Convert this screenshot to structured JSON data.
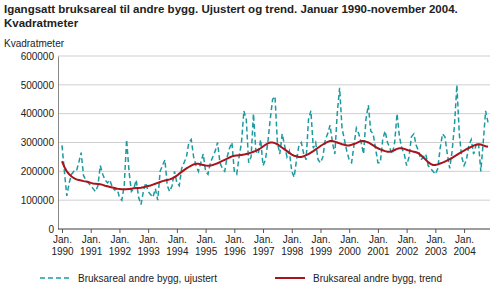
{
  "chart_data": {
    "type": "line",
    "title": "Igangsatt bruksareal til andre bygg. Ujustert og trend. Januar 1990-november 2004. Kvadratmeter",
    "y_label": "Kvadratmeter",
    "categories": [
      "Jan. 1990",
      null,
      null,
      null,
      null,
      null,
      null,
      null,
      null,
      null,
      null,
      null,
      "Jan. 1991",
      null,
      null,
      null,
      null,
      null,
      null,
      null,
      null,
      null,
      null,
      null,
      "Jan. 1992",
      null,
      null,
      null,
      null,
      null,
      null,
      null,
      null,
      null,
      null,
      null,
      "Jan. 1993",
      null,
      null,
      null,
      null,
      null,
      null,
      null,
      null,
      null,
      null,
      null,
      "Jan. 1994",
      null,
      null,
      null,
      null,
      null,
      null,
      null,
      null,
      null,
      null,
      null,
      "Jan. 1995",
      null,
      null,
      null,
      null,
      null,
      null,
      null,
      null,
      null,
      null,
      null,
      "Jan. 1996",
      null,
      null,
      null,
      null,
      null,
      null,
      null,
      null,
      null,
      null,
      null,
      "Jan. 1997",
      null,
      null,
      null,
      null,
      null,
      null,
      null,
      null,
      null,
      null,
      null,
      "Jan. 1998",
      null,
      null,
      null,
      null,
      null,
      null,
      null,
      null,
      null,
      null,
      null,
      "Jan. 1999",
      null,
      null,
      null,
      null,
      null,
      null,
      null,
      null,
      null,
      null,
      null,
      "Jan. 2000",
      null,
      null,
      null,
      null,
      null,
      null,
      null,
      null,
      null,
      null,
      null,
      "Jan. 2001",
      null,
      null,
      null,
      null,
      null,
      null,
      null,
      null,
      null,
      null,
      null,
      "Jan. 2002",
      null,
      null,
      null,
      null,
      null,
      null,
      null,
      null,
      null,
      null,
      null,
      "Jan. 2003",
      null,
      null,
      null,
      null,
      null,
      null,
      null,
      null,
      null,
      null,
      null,
      "Jan. 2004",
      null,
      null,
      null,
      null,
      null,
      null,
      null,
      null,
      null,
      null
    ],
    "series": [
      {
        "name": "Bruksareal andre bygg, ujustert",
        "color": "#1b9aa0",
        "line_style": "dashed",
        "values": [
          290000,
          200000,
          115000,
          160000,
          190000,
          200000,
          200000,
          230000,
          265000,
          185000,
          170000,
          160000,
          150000,
          140000,
          130000,
          150000,
          220000,
          190000,
          170000,
          160000,
          170000,
          145000,
          135000,
          140000,
          110000,
          100000,
          150000,
          310000,
          200000,
          130000,
          140000,
          170000,
          110000,
          85000,
          130000,
          160000,
          130000,
          120000,
          110000,
          140000,
          100000,
          200000,
          220000,
          240000,
          150000,
          130000,
          150000,
          200000,
          160000,
          150000,
          210000,
          230000,
          250000,
          300000,
          310000,
          250000,
          220000,
          200000,
          230000,
          260000,
          200000,
          190000,
          230000,
          250000,
          270000,
          300000,
          230000,
          210000,
          200000,
          250000,
          280000,
          300000,
          200000,
          190000,
          250000,
          300000,
          410000,
          380000,
          230000,
          250000,
          400000,
          270000,
          260000,
          310000,
          220000,
          240000,
          300000,
          380000,
          450000,
          460000,
          300000,
          260000,
          330000,
          290000,
          250000,
          270000,
          200000,
          180000,
          240000,
          290000,
          300000,
          260000,
          240000,
          380000,
          410000,
          280000,
          300000,
          240000,
          230000,
          250000,
          310000,
          330000,
          360000,
          300000,
          260000,
          400000,
          490000,
          350000,
          310000,
          270000,
          240000,
          230000,
          290000,
          350000,
          330000,
          300000,
          260000,
          380000,
          430000,
          340000,
          330000,
          280000,
          230000,
          230000,
          310000,
          340000,
          300000,
          280000,
          260000,
          300000,
          400000,
          320000,
          280000,
          260000,
          220000,
          250000,
          320000,
          330000,
          290000,
          270000,
          240000,
          250000,
          260000,
          220000,
          210000,
          200000,
          190000,
          210000,
          280000,
          330000,
          320000,
          260000,
          210000,
          270000,
          360000,
          500000,
          330000,
          250000,
          220000,
          240000,
          290000,
          310000,
          260000,
          290000,
          300000,
          200000,
          300000,
          410000,
          370000
        ]
      },
      {
        "name": "Bruksareal andre bygg, trend",
        "color": "#a8141c",
        "line_style": "solid",
        "values": [
          235000,
          215000,
          200000,
          190000,
          182000,
          176000,
          172000,
          170000,
          168000,
          166000,
          165000,
          163000,
          160000,
          158000,
          157000,
          156000,
          155000,
          153000,
          150000,
          148000,
          146000,
          144000,
          142000,
          140000,
          139000,
          138000,
          138000,
          138000,
          139000,
          140000,
          141000,
          142000,
          142000,
          143000,
          145000,
          147000,
          149000,
          151000,
          154000,
          157000,
          160000,
          163000,
          166000,
          168000,
          170000,
          172000,
          175000,
          180000,
          185000,
          192000,
          198000,
          204000,
          210000,
          215000,
          220000,
          224000,
          226000,
          226000,
          224000,
          222000,
          220000,
          219000,
          220000,
          222000,
          225000,
          228000,
          232000,
          236000,
          240000,
          244000,
          248000,
          252000,
          254000,
          255000,
          256000,
          257000,
          258000,
          260000,
          262000,
          265000,
          268000,
          271000,
          275000,
          280000,
          286000,
          292000,
          297000,
          300000,
          300000,
          298000,
          294000,
          288000,
          282000,
          276000,
          270000,
          264000,
          258000,
          254000,
          252000,
          250000,
          250000,
          252000,
          256000,
          260000,
          265000,
          270000,
          276000,
          282000,
          288000,
          293000,
          298000,
          302000,
          305000,
          305000,
          303000,
          300000,
          297000,
          294000,
          292000,
          290000,
          290000,
          292000,
          295000,
          298000,
          302000,
          305000,
          305000,
          303000,
          300000,
          295000,
          290000,
          285000,
          280000,
          276000,
          273000,
          270000,
          268000,
          268000,
          270000,
          274000,
          278000,
          280000,
          280000,
          278000,
          275000,
          272000,
          270000,
          268000,
          266000,
          262000,
          256000,
          248000,
          240000,
          232000,
          226000,
          222000,
          222000,
          224000,
          227000,
          230000,
          234000,
          238000,
          242000,
          247000,
          252000,
          257000,
          262000,
          267000,
          272000,
          277000,
          281000,
          285000,
          289000,
          292000,
          294000,
          293000,
          290000,
          287000,
          285000
        ]
      }
    ],
    "ylim": [
      0,
      600000
    ],
    "yticks": [
      0,
      100000,
      200000,
      300000,
      400000,
      500000,
      600000
    ],
    "grid": true,
    "legend": "bottom"
  }
}
